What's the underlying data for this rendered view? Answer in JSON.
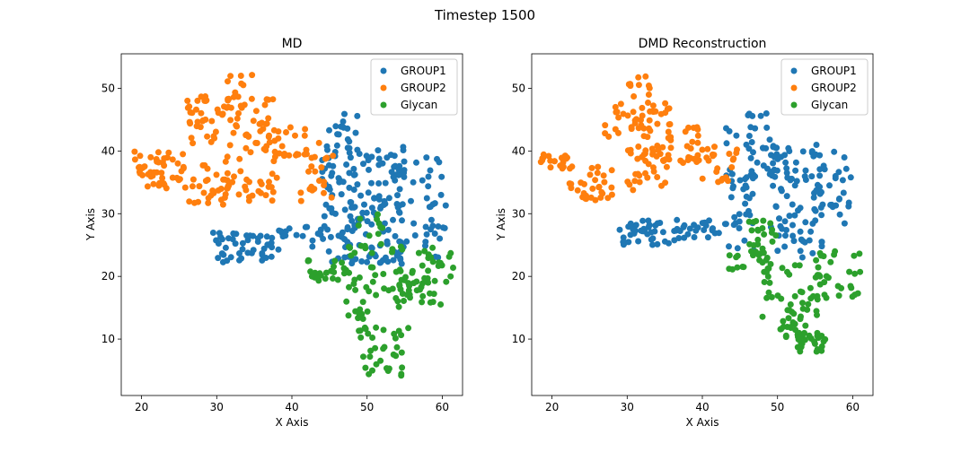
{
  "figure": {
    "suptitle": "Timestep 1500"
  },
  "chart_data": [
    {
      "type": "scatter",
      "title": "MD",
      "xlabel": "X Axis",
      "ylabel": "Y Axis",
      "xlim": [
        17.3,
        62.7
      ],
      "ylim": [
        1.0,
        55.5
      ],
      "xticks": [
        20,
        30,
        40,
        50,
        60
      ],
      "yticks": [
        10,
        20,
        30,
        40,
        50
      ],
      "grid": false,
      "legend": "top-right",
      "series": [
        {
          "name": "GROUP1",
          "color": "#1f77b4",
          "clusters": [
            {
              "x": [
                29.5,
                37.5
              ],
              "y": [
                22,
                27
              ],
              "n": 45
            },
            {
              "x": [
                38,
                44
              ],
              "y": [
                24,
                28
              ],
              "n": 18
            },
            {
              "x": [
                44,
                48.5
              ],
              "y": [
                22,
                45
              ],
              "n": 60
            },
            {
              "x": [
                47,
                55
              ],
              "y": [
                22,
                41
              ],
              "n": 110
            },
            {
              "x": [
                54,
                60.5
              ],
              "y": [
                22,
                39
              ],
              "n": 45
            },
            {
              "x": [
                46,
                49
              ],
              "y": [
                40,
                46
              ],
              "n": 10
            }
          ]
        },
        {
          "name": "GROUP2",
          "color": "#ff7f0e",
          "clusters": [
            {
              "x": [
                19,
                26
              ],
              "y": [
                34,
                40
              ],
              "n": 45
            },
            {
              "x": [
                25,
                32
              ],
              "y": [
                31,
                38
              ],
              "n": 30
            },
            {
              "x": [
                26,
                38
              ],
              "y": [
                41,
                49
              ],
              "n": 70
            },
            {
              "x": [
                31,
                35
              ],
              "y": [
                47,
                52.5
              ],
              "n": 12
            },
            {
              "x": [
                30,
                38
              ],
              "y": [
                32,
                41
              ],
              "n": 40
            },
            {
              "x": [
                37,
                42
              ],
              "y": [
                38,
                44
              ],
              "n": 20
            },
            {
              "x": [
                41,
                46
              ],
              "y": [
                32,
                42
              ],
              "n": 22
            }
          ]
        },
        {
          "name": "Glycan",
          "color": "#2ca02c",
          "clusters": [
            {
              "x": [
                42,
                47
              ],
              "y": [
                19,
                23
              ],
              "n": 22
            },
            {
              "x": [
                47,
                53
              ],
              "y": [
                13,
                30
              ],
              "n": 45
            },
            {
              "x": [
                48.5,
                55.5
              ],
              "y": [
                4,
                12
              ],
              "n": 35
            },
            {
              "x": [
                53,
                60
              ],
              "y": [
                15,
                25
              ],
              "n": 55
            },
            {
              "x": [
                58,
                61.5
              ],
              "y": [
                19,
                24
              ],
              "n": 8
            }
          ]
        }
      ]
    },
    {
      "type": "scatter",
      "title": "DMD Reconstruction",
      "xlabel": "X Axis",
      "ylabel": "Y Axis",
      "xlim": [
        17.3,
        62.7
      ],
      "ylim": [
        1.0,
        55.5
      ],
      "xticks": [
        20,
        30,
        40,
        50,
        60
      ],
      "yticks": [
        10,
        20,
        30,
        40,
        50
      ],
      "grid": false,
      "legend": "top-right",
      "series": [
        {
          "name": "GROUP1",
          "color": "#1f77b4",
          "clusters": [
            {
              "x": [
                29,
                37
              ],
              "y": [
                25,
                29
              ],
              "n": 45
            },
            {
              "x": [
                37,
                45
              ],
              "y": [
                26,
                29
              ],
              "n": 25
            },
            {
              "x": [
                43,
                47
              ],
              "y": [
                24,
                44
              ],
              "n": 40
            },
            {
              "x": [
                46,
                50
              ],
              "y": [
                35,
                46
              ],
              "n": 25
            },
            {
              "x": [
                49,
                56
              ],
              "y": [
                23,
                41
              ],
              "n": 80
            },
            {
              "x": [
                55,
                60
              ],
              "y": [
                28,
                40
              ],
              "n": 30
            }
          ]
        },
        {
          "name": "GROUP2",
          "color": "#ff7f0e",
          "clusters": [
            {
              "x": [
                18.5,
                23
              ],
              "y": [
                37,
                39.5
              ],
              "n": 20
            },
            {
              "x": [
                22,
                28
              ],
              "y": [
                32,
                38
              ],
              "n": 30
            },
            {
              "x": [
                27,
                36
              ],
              "y": [
                42,
                48
              ],
              "n": 45
            },
            {
              "x": [
                30,
                33
              ],
              "y": [
                48,
                52
              ],
              "n": 10
            },
            {
              "x": [
                30,
                36
              ],
              "y": [
                33,
                41
              ],
              "n": 40
            },
            {
              "x": [
                35,
                41
              ],
              "y": [
                38,
                44
              ],
              "n": 25
            },
            {
              "x": [
                40,
                45
              ],
              "y": [
                34,
                41
              ],
              "n": 20
            }
          ]
        },
        {
          "name": "Glycan",
          "color": "#2ca02c",
          "clusters": [
            {
              "x": [
                43,
                49
              ],
              "y": [
                21,
                24
              ],
              "n": 20
            },
            {
              "x": [
                46,
                50
              ],
              "y": [
                24,
                29
              ],
              "n": 20
            },
            {
              "x": [
                48,
                56
              ],
              "y": [
                13,
                22
              ],
              "n": 40
            },
            {
              "x": [
                50,
                54
              ],
              "y": [
                10,
                13
              ],
              "n": 15
            },
            {
              "x": [
                52,
                56.5
              ],
              "y": [
                8,
                11
              ],
              "n": 25
            },
            {
              "x": [
                55,
                61
              ],
              "y": [
                16,
                24
              ],
              "n": 30
            }
          ]
        }
      ]
    }
  ]
}
